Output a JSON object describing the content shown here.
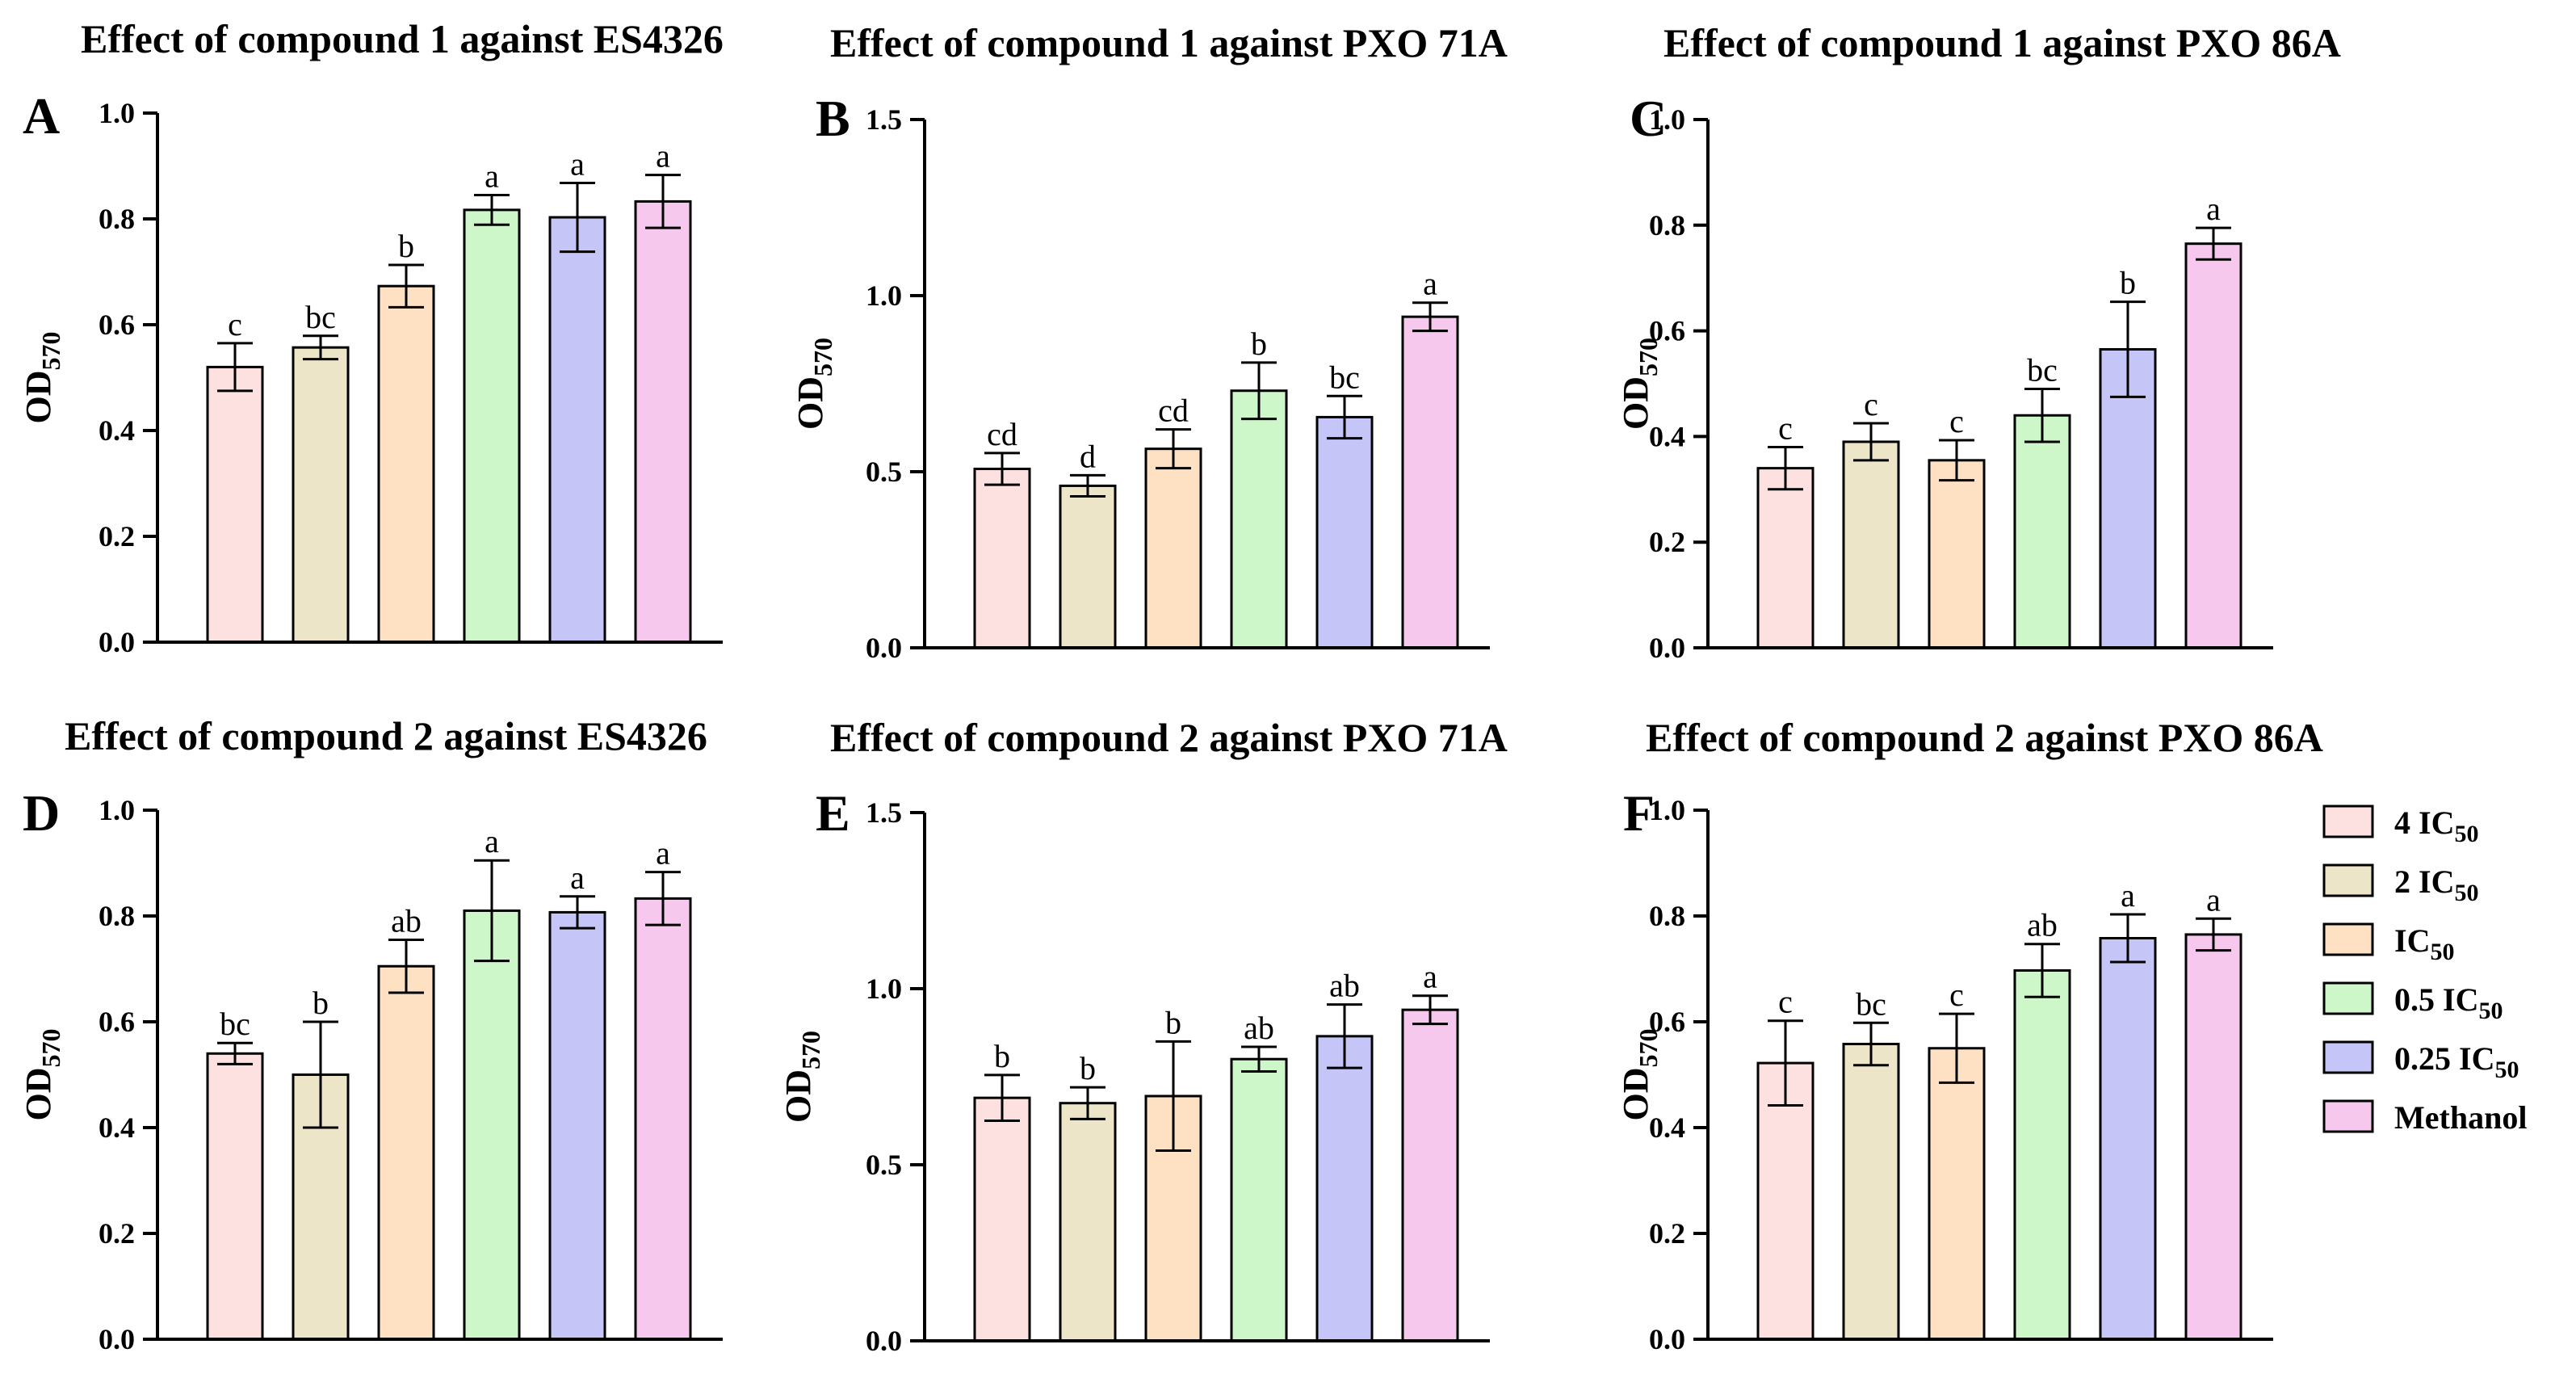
{
  "legend": {
    "entries": [
      {
        "pre": "4 IC",
        "sub": "50",
        "post": "",
        "color": "#fde0e0"
      },
      {
        "pre": "2 IC",
        "sub": "50",
        "post": "",
        "color": "#ede5c8"
      },
      {
        "pre": "IC",
        "sub": "50",
        "post": "",
        "color": "#fde1c2"
      },
      {
        "pre": "0.5 IC",
        "sub": "50",
        "post": "",
        "color": "#cdf7c9"
      },
      {
        "pre": "0.25 IC",
        "sub": "50",
        "post": "",
        "color": "#c5c5f7"
      },
      {
        "pre": "Methanol",
        "sub": "",
        "post": "",
        "color": "#f7c8ee"
      }
    ]
  },
  "chart_data": [
    {
      "type": "bar",
      "letter": "A",
      "title": "Effect of compound 1 against ES4326",
      "ylabel_main": "OD",
      "ylabel_sub": "570",
      "ylim": [
        0,
        1.0
      ],
      "yticks": [
        "0.0",
        "0.2",
        "0.4",
        "0.6",
        "0.8",
        "1.0"
      ],
      "categories": [
        "4 IC50",
        "2 IC50",
        "IC50",
        "0.5 IC50",
        "0.25 IC50",
        "Methanol"
      ],
      "values": [
        0.52,
        0.557,
        0.673,
        0.817,
        0.803,
        0.833
      ],
      "errors": [
        0.045,
        0.022,
        0.04,
        0.028,
        0.065,
        0.05
      ],
      "labels": [
        "c",
        "bc",
        "b",
        "a",
        "a",
        "a"
      ]
    },
    {
      "type": "bar",
      "letter": "B",
      "title": "Effect of compound 1 against PXO 71A",
      "ylabel_main": "OD",
      "ylabel_sub": "570",
      "ylim": [
        0,
        1.5
      ],
      "yticks": [
        "0.0",
        "0.5",
        "1.0",
        "1.5"
      ],
      "categories": [
        "4 IC50",
        "2 IC50",
        "IC50",
        "0.5 IC50",
        "0.25 IC50",
        "Methanol"
      ],
      "values": [
        0.508,
        0.46,
        0.565,
        0.73,
        0.655,
        0.94
      ],
      "errors": [
        0.045,
        0.03,
        0.055,
        0.08,
        0.06,
        0.04
      ],
      "labels": [
        "cd",
        "d",
        "cd",
        "b",
        "bc",
        "a"
      ]
    },
    {
      "type": "bar",
      "letter": "C",
      "title": "Effect of compound 1 against PXO 86A",
      "ylabel_main": "OD",
      "ylabel_sub": "570",
      "ylim": [
        0,
        1.0
      ],
      "yticks": [
        "0.0",
        "0.2",
        "0.4",
        "0.6",
        "0.8",
        "1.0"
      ],
      "categories": [
        "4 IC50",
        "2 IC50",
        "IC50",
        "0.5 IC50",
        "0.25 IC50",
        "Methanol"
      ],
      "values": [
        0.34,
        0.39,
        0.355,
        0.44,
        0.565,
        0.765
      ],
      "errors": [
        0.04,
        0.035,
        0.038,
        0.05,
        0.09,
        0.03
      ],
      "labels": [
        "c",
        "c",
        "c",
        "bc",
        "b",
        "a"
      ]
    },
    {
      "type": "bar",
      "letter": "D",
      "title": "Effect of compound 2 against ES4326",
      "ylabel_main": "OD",
      "ylabel_sub": "570",
      "ylim": [
        0,
        1.0
      ],
      "yticks": [
        "0.0",
        "0.2",
        "0.4",
        "0.6",
        "0.8",
        "1.0"
      ],
      "categories": [
        "4 IC50",
        "2 IC50",
        "IC50",
        "0.5 IC50",
        "0.25 IC50",
        "Methanol"
      ],
      "values": [
        0.54,
        0.5,
        0.705,
        0.81,
        0.807,
        0.833
      ],
      "errors": [
        0.02,
        0.1,
        0.05,
        0.095,
        0.03,
        0.05
      ],
      "labels": [
        "bc",
        "b",
        "ab",
        "a",
        "a",
        "a"
      ]
    },
    {
      "type": "bar",
      "letter": "E",
      "title": "Effect of compound 2 against  PXO 71A",
      "ylabel_main": "OD",
      "ylabel_sub": "570",
      "ylim": [
        0,
        1.5
      ],
      "yticks": [
        "0.0",
        "0.5",
        "1.0",
        "1.5"
      ],
      "categories": [
        "4 IC50",
        "2 IC50",
        "IC50",
        "0.5 IC50",
        "0.25 IC50",
        "Methanol"
      ],
      "values": [
        0.69,
        0.675,
        0.695,
        0.8,
        0.865,
        0.94
      ],
      "errors": [
        0.065,
        0.045,
        0.155,
        0.035,
        0.09,
        0.04
      ],
      "labels": [
        "b",
        "b",
        "b",
        "ab",
        "ab",
        "a"
      ]
    },
    {
      "type": "bar",
      "letter": "F",
      "title": "Effect of compound 2 against PXO 86A",
      "ylabel_main": "OD",
      "ylabel_sub": "570",
      "ylim": [
        0,
        1.0
      ],
      "yticks": [
        "0.0",
        "0.2",
        "0.4",
        "0.6",
        "0.8",
        "1.0"
      ],
      "categories": [
        "4 IC50",
        "2 IC50",
        "IC50",
        "0.5 IC50",
        "0.25 IC50",
        "Methanol"
      ],
      "values": [
        0.522,
        0.558,
        0.55,
        0.697,
        0.758,
        0.765
      ],
      "errors": [
        0.08,
        0.04,
        0.065,
        0.05,
        0.045,
        0.03
      ],
      "labels": [
        "c",
        "bc",
        "c",
        "ab",
        "a",
        "a"
      ]
    }
  ]
}
